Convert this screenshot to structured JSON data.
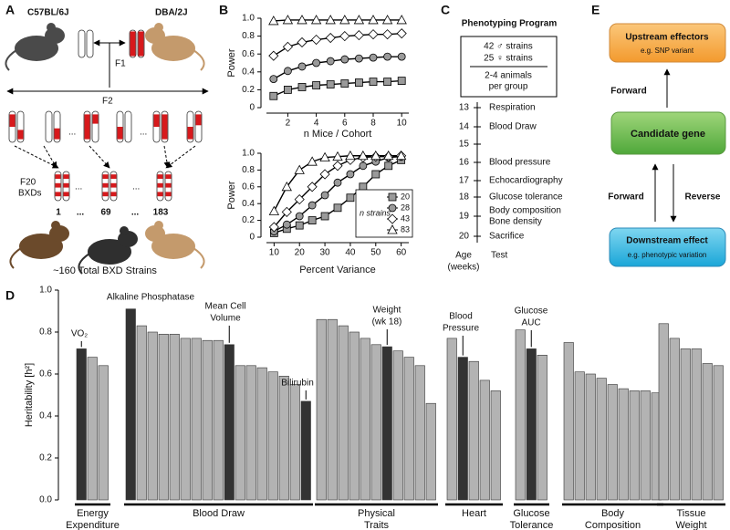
{
  "panels": {
    "A": {
      "letter": "A",
      "strain_b6": "C57BL/6J",
      "strain_dba": "DBA/2J",
      "f1": "F1",
      "f2": "F2",
      "f20": "F20",
      "bxds": "BXDs",
      "ellipsis": "...",
      "strain_numbers": [
        "1",
        "69",
        "183"
      ],
      "total": "~160 Total BXD Strains"
    },
    "B": {
      "letter": "B"
    },
    "C": {
      "letter": "C",
      "title": "Phenotyping Program",
      "box": [
        "42 ♂ strains",
        "25 ♀ strains"
      ],
      "group_size": [
        "2-4 animals",
        "per group"
      ],
      "timeline": [
        {
          "age": 13,
          "test": [
            "Respiration"
          ]
        },
        {
          "age": 14,
          "test": [
            "Blood Draw"
          ]
        },
        {
          "age": 15
        },
        {
          "age": 16,
          "test": [
            "Blood pressure"
          ]
        },
        {
          "age": 17,
          "test": [
            "Echocardiography"
          ]
        },
        {
          "age": 18,
          "test": [
            "Glucose tolerance"
          ]
        },
        {
          "age": 19,
          "test": [
            "Body composition",
            "Bone density"
          ]
        },
        {
          "age": 20,
          "test": [
            "Sacrifice"
          ]
        }
      ],
      "age_label": [
        "Age",
        "(weeks)"
      ],
      "test_label": "Test"
    },
    "D": {
      "letter": "D"
    },
    "E": {
      "letter": "E",
      "upstream": "Upstream effectors",
      "upstream_sub": "e.g. SNP variant",
      "forward_top": "Forward",
      "candidate": "Candidate gene",
      "forward_bottom": "Forward",
      "reverse": "Reverse",
      "downstream": "Downstream effect",
      "downstream_sub": "e.g. phenotypic variation"
    }
  },
  "chart_data": [
    {
      "type": "line",
      "ylabel": "Power",
      "xlabel": "n Mice / Cohort",
      "x": [
        1,
        2,
        3,
        4,
        5,
        6,
        7,
        8,
        9,
        10
      ],
      "xlim": [
        0.5,
        10.5
      ],
      "xticks": [
        2,
        4,
        6,
        8,
        10
      ],
      "ylim": [
        0,
        1
      ],
      "yticks": [
        0,
        0.2,
        0.4,
        0.6,
        0.8,
        {
          "value": 1,
          "label": "1.0"
        }
      ],
      "series": [
        {
          "marker": "triangle",
          "color": "#ffffff",
          "values": [
            0.97,
            0.98,
            0.98,
            0.98,
            0.98,
            0.98,
            0.98,
            0.98,
            0.98,
            0.98
          ]
        },
        {
          "marker": "diamond",
          "color": "#ffffff",
          "values": [
            0.58,
            0.68,
            0.73,
            0.76,
            0.78,
            0.8,
            0.81,
            0.82,
            0.82,
            0.83
          ]
        },
        {
          "marker": "circle",
          "color": "#9a9a9a",
          "values": [
            0.32,
            0.41,
            0.46,
            0.5,
            0.52,
            0.54,
            0.55,
            0.56,
            0.57,
            0.57
          ]
        },
        {
          "marker": "square",
          "color": "#9a9a9a",
          "values": [
            0.13,
            0.2,
            0.23,
            0.25,
            0.26,
            0.27,
            0.28,
            0.29,
            0.29,
            0.3
          ]
        }
      ]
    },
    {
      "type": "line",
      "ylabel": "Power",
      "xlabel": "Percent Variance",
      "x": [
        10,
        15,
        20,
        25,
        30,
        35,
        40,
        45,
        50,
        55,
        60
      ],
      "xlim": [
        7,
        63
      ],
      "xticks": [
        10,
        20,
        30,
        40,
        50,
        60
      ],
      "ylim": [
        0,
        1
      ],
      "yticks": [
        0,
        0.2,
        0.4,
        0.6,
        0.8,
        {
          "value": 1,
          "label": "1.0"
        }
      ],
      "legend_title": "n strains",
      "legend": "lower right",
      "series": [
        {
          "name": "20",
          "marker": "square",
          "color": "#9a9a9a",
          "values": [
            0.05,
            0.1,
            0.14,
            0.2,
            0.25,
            0.35,
            0.47,
            0.6,
            0.75,
            0.85,
            0.92
          ]
        },
        {
          "name": "28",
          "marker": "circle",
          "color": "#9a9a9a",
          "values": [
            0.07,
            0.15,
            0.25,
            0.38,
            0.5,
            0.65,
            0.75,
            0.85,
            0.9,
            0.95,
            0.96
          ]
        },
        {
          "name": "43",
          "marker": "diamond",
          "color": "#ffffff",
          "values": [
            0.12,
            0.3,
            0.45,
            0.6,
            0.75,
            0.85,
            0.92,
            0.95,
            0.96,
            0.96,
            0.97
          ]
        },
        {
          "name": "83",
          "marker": "triangle",
          "color": "#ffffff",
          "values": [
            0.31,
            0.6,
            0.8,
            0.9,
            0.95,
            0.96,
            0.97,
            0.97,
            0.97,
            0.97,
            0.97
          ]
        }
      ]
    },
    {
      "type": "bar",
      "ylabel": "Heritability [h²]",
      "ylim": [
        0,
        1
      ],
      "yticks": [
        {
          "value": 0,
          "label": "0.0"
        },
        0.2,
        0.4,
        0.6,
        0.8,
        {
          "value": 1,
          "label": "1.0"
        }
      ],
      "color": "#b3b3b3",
      "highlight_color": "#333333",
      "groups": [
        {
          "name": [
            "Energy",
            "Expenditure"
          ],
          "values": [
            0.72,
            0.68,
            0.64
          ],
          "highlight": [
            0
          ]
        },
        {
          "name": [
            "Blood Draw"
          ],
          "values": [
            0.91,
            0.83,
            0.8,
            0.79,
            0.79,
            0.77,
            0.77,
            0.76,
            0.76,
            0.74,
            0.64,
            0.64,
            0.63,
            0.61,
            0.59,
            0.55,
            0.47
          ],
          "highlight": [
            0,
            9,
            16
          ]
        },
        {
          "name": [
            "Physical",
            "Traits"
          ],
          "values": [
            0.86,
            0.86,
            0.83,
            0.8,
            0.77,
            0.74,
            0.73,
            0.71,
            0.68,
            0.64,
            0.46
          ],
          "highlight": [
            6
          ]
        },
        {
          "name": [
            "Heart"
          ],
          "values": [
            0.77,
            0.68,
            0.66,
            0.57,
            0.52
          ],
          "highlight": [
            1
          ]
        },
        {
          "name": [
            "Glucose",
            "Tolerance"
          ],
          "values": [
            0.81,
            0.72,
            0.69
          ],
          "highlight": [
            1
          ]
        },
        {
          "name": [
            "Body",
            "Composition"
          ],
          "values": [
            0.75,
            0.61,
            0.6,
            0.58,
            0.55,
            0.53,
            0.52,
            0.52,
            0.51
          ],
          "highlight": []
        },
        {
          "name": [
            "Tissue",
            "Weight"
          ],
          "values": [
            0.84,
            0.77,
            0.72,
            0.72,
            0.65,
            0.64
          ],
          "highlight": []
        }
      ],
      "annotations": [
        [
          "VO₂"
        ],
        [
          "Alkaline Phosphatase"
        ],
        [
          "Mean Cell",
          "Volume"
        ],
        [
          "Bilirubin"
        ],
        [
          "Weight",
          "(wk 18)"
        ],
        [
          "Blood",
          "Pressure"
        ],
        [
          "Glucose",
          "AUC"
        ]
      ]
    }
  ]
}
